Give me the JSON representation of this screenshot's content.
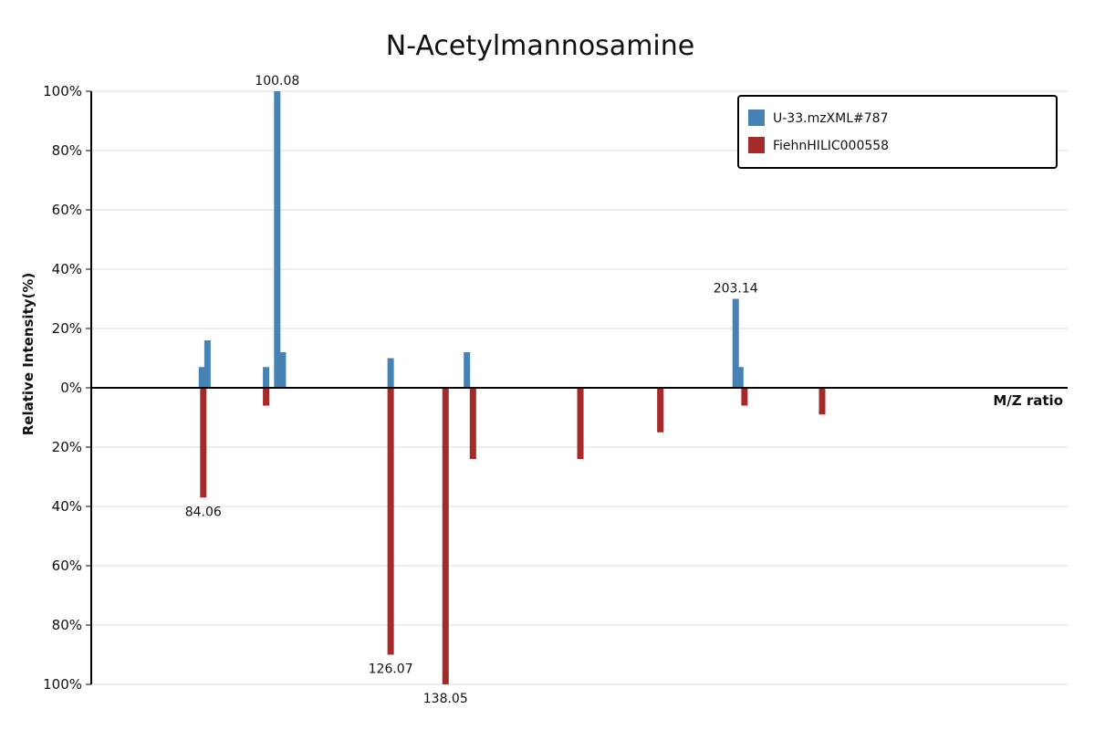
{
  "chart_data": {
    "type": "bar",
    "title": "N-Acetylmannosamine",
    "xlabel": "M/Z ratio",
    "ylabel": "Relative Intensity(%)",
    "ylim_top": [
      0,
      100
    ],
    "ylim_bottom": [
      0,
      100
    ],
    "xlim": [
      50,
      260
    ],
    "y_ticks_top": [
      "0%",
      "20%",
      "40%",
      "60%",
      "80%",
      "100%"
    ],
    "y_ticks_bottom": [
      "20%",
      "40%",
      "60%",
      "80%",
      "100%"
    ],
    "grid": true,
    "legend_position": "top-right",
    "series": [
      {
        "name": "U-33.mzXML#787",
        "color": "#4682b4",
        "direction": "up",
        "peaks": [
          {
            "mz": 73.8,
            "intensity": 7
          },
          {
            "mz": 75.0,
            "intensity": 16
          },
          {
            "mz": 87.6,
            "intensity": 7
          },
          {
            "mz": 90.0,
            "intensity": 100,
            "label": "100.08"
          },
          {
            "mz": 91.2,
            "intensity": 12
          },
          {
            "mz": 114.4,
            "intensity": 10
          },
          {
            "mz": 130.8,
            "intensity": 12
          },
          {
            "mz": 188.6,
            "intensity": 30,
            "label": "203.14"
          },
          {
            "mz": 189.6,
            "intensity": 7
          }
        ]
      },
      {
        "name": "FiehnHILIC000558",
        "color": "#a52a2a",
        "direction": "down",
        "peaks": [
          {
            "mz": 74.1,
            "intensity": 37,
            "label": "84.06"
          },
          {
            "mz": 87.6,
            "intensity": 6
          },
          {
            "mz": 114.4,
            "intensity": 90,
            "label": "126.07"
          },
          {
            "mz": 126.2,
            "intensity": 100,
            "label": "138.05"
          },
          {
            "mz": 132.1,
            "intensity": 24
          },
          {
            "mz": 155.2,
            "intensity": 24
          },
          {
            "mz": 172.4,
            "intensity": 15
          },
          {
            "mz": 190.5,
            "intensity": 6
          },
          {
            "mz": 207.2,
            "intensity": 9
          }
        ]
      }
    ]
  }
}
